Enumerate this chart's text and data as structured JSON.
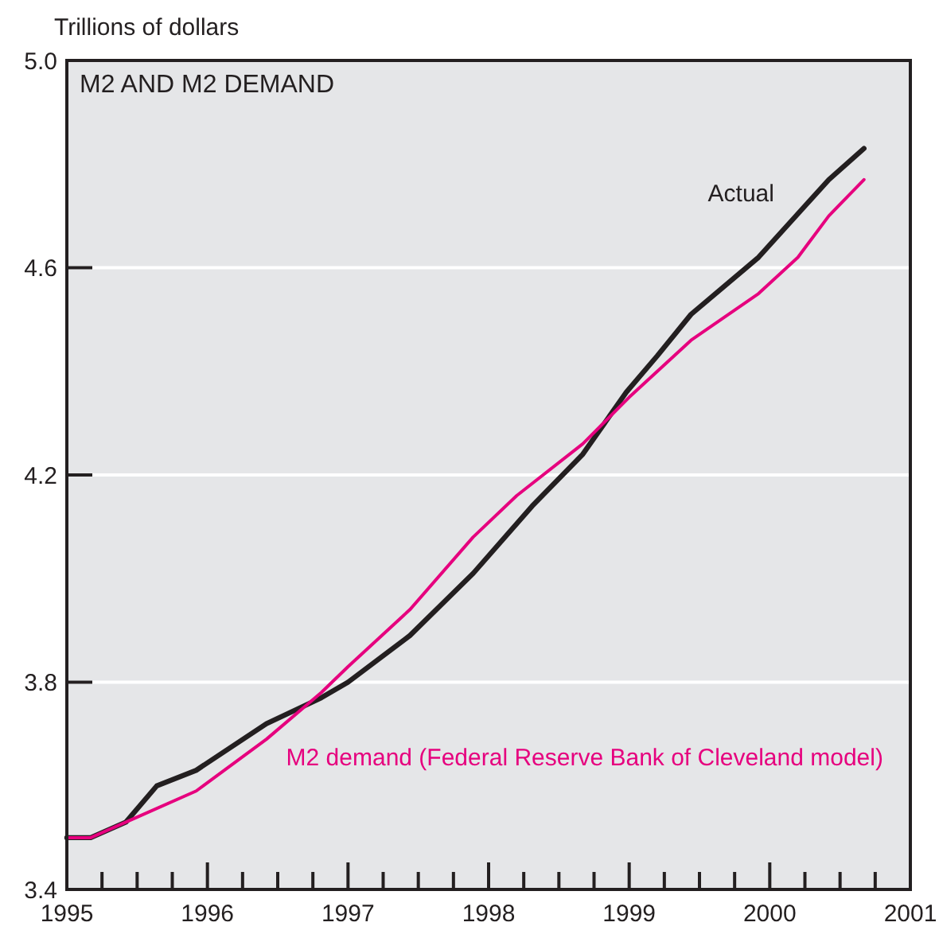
{
  "chart_data": {
    "type": "line",
    "title": "M2 AND M2 DEMAND",
    "ylabel": "Trillions of dollars",
    "xlim": [
      1995,
      2001
    ],
    "xticks": [
      1995,
      {
        "value": 1995.25,
        "label": null
      },
      {
        "value": 1995.5,
        "label": null
      },
      {
        "value": 1995.75,
        "label": null
      },
      1996,
      {
        "value": 1996.25,
        "label": null
      },
      {
        "value": 1996.5,
        "label": null
      },
      {
        "value": 1996.75,
        "label": null
      },
      1997,
      {
        "value": 1997.25,
        "label": null
      },
      {
        "value": 1997.5,
        "label": null
      },
      {
        "value": 1997.75,
        "label": null
      },
      1998,
      {
        "value": 1998.25,
        "label": null
      },
      {
        "value": 1998.5,
        "label": null
      },
      {
        "value": 1998.75,
        "label": null
      },
      1999,
      {
        "value": 1999.25,
        "label": null
      },
      {
        "value": 1999.5,
        "label": null
      },
      {
        "value": 1999.75,
        "label": null
      },
      2000,
      {
        "value": 2000.25,
        "label": null
      },
      {
        "value": 2000.5,
        "label": null
      },
      {
        "value": 2000.75,
        "label": null
      },
      2001
    ],
    "ylim": [
      3.4,
      5.0
    ],
    "yticks": [
      {
        "value": 3.4,
        "label": "3.4"
      },
      {
        "value": 3.8,
        "label": "3.8"
      },
      {
        "value": 4.2,
        "label": "4.2"
      },
      {
        "value": 4.6,
        "label": "4.6"
      },
      {
        "value": 5.0,
        "label": "5.0"
      }
    ],
    "grid": "y",
    "marker": "none",
    "line_style": "solid",
    "series": [
      {
        "name": "Actual",
        "color": "#231f20",
        "x": [
          1995.0,
          1995.17,
          1995.42,
          1995.64,
          1995.92,
          1996.42,
          1996.81,
          1997.0,
          1997.44,
          1997.89,
          1998.31,
          1998.67,
          1998.98,
          1999.2,
          1999.44,
          1999.92,
          2000.42,
          2000.67
        ],
        "values": [
          3.5,
          3.5,
          3.53,
          3.6,
          3.63,
          3.72,
          3.77,
          3.8,
          3.89,
          4.01,
          4.14,
          4.24,
          4.36,
          4.43,
          4.51,
          4.62,
          4.77,
          4.83
        ]
      },
      {
        "name": "M2 demand (Federal Reserve Bank of Cleveland model)",
        "color": "#e6007e",
        "x": [
          1995.0,
          1995.17,
          1995.42,
          1995.92,
          1996.42,
          1996.81,
          1997.0,
          1997.44,
          1997.89,
          1998.2,
          1998.67,
          1999.0,
          1999.44,
          1999.92,
          2000.2,
          2000.42,
          2000.67
        ],
        "values": [
          3.5,
          3.5,
          3.53,
          3.59,
          3.69,
          3.78,
          3.83,
          3.94,
          4.08,
          4.16,
          4.26,
          4.35,
          4.46,
          4.55,
          4.62,
          4.7,
          4.77
        ]
      }
    ]
  }
}
